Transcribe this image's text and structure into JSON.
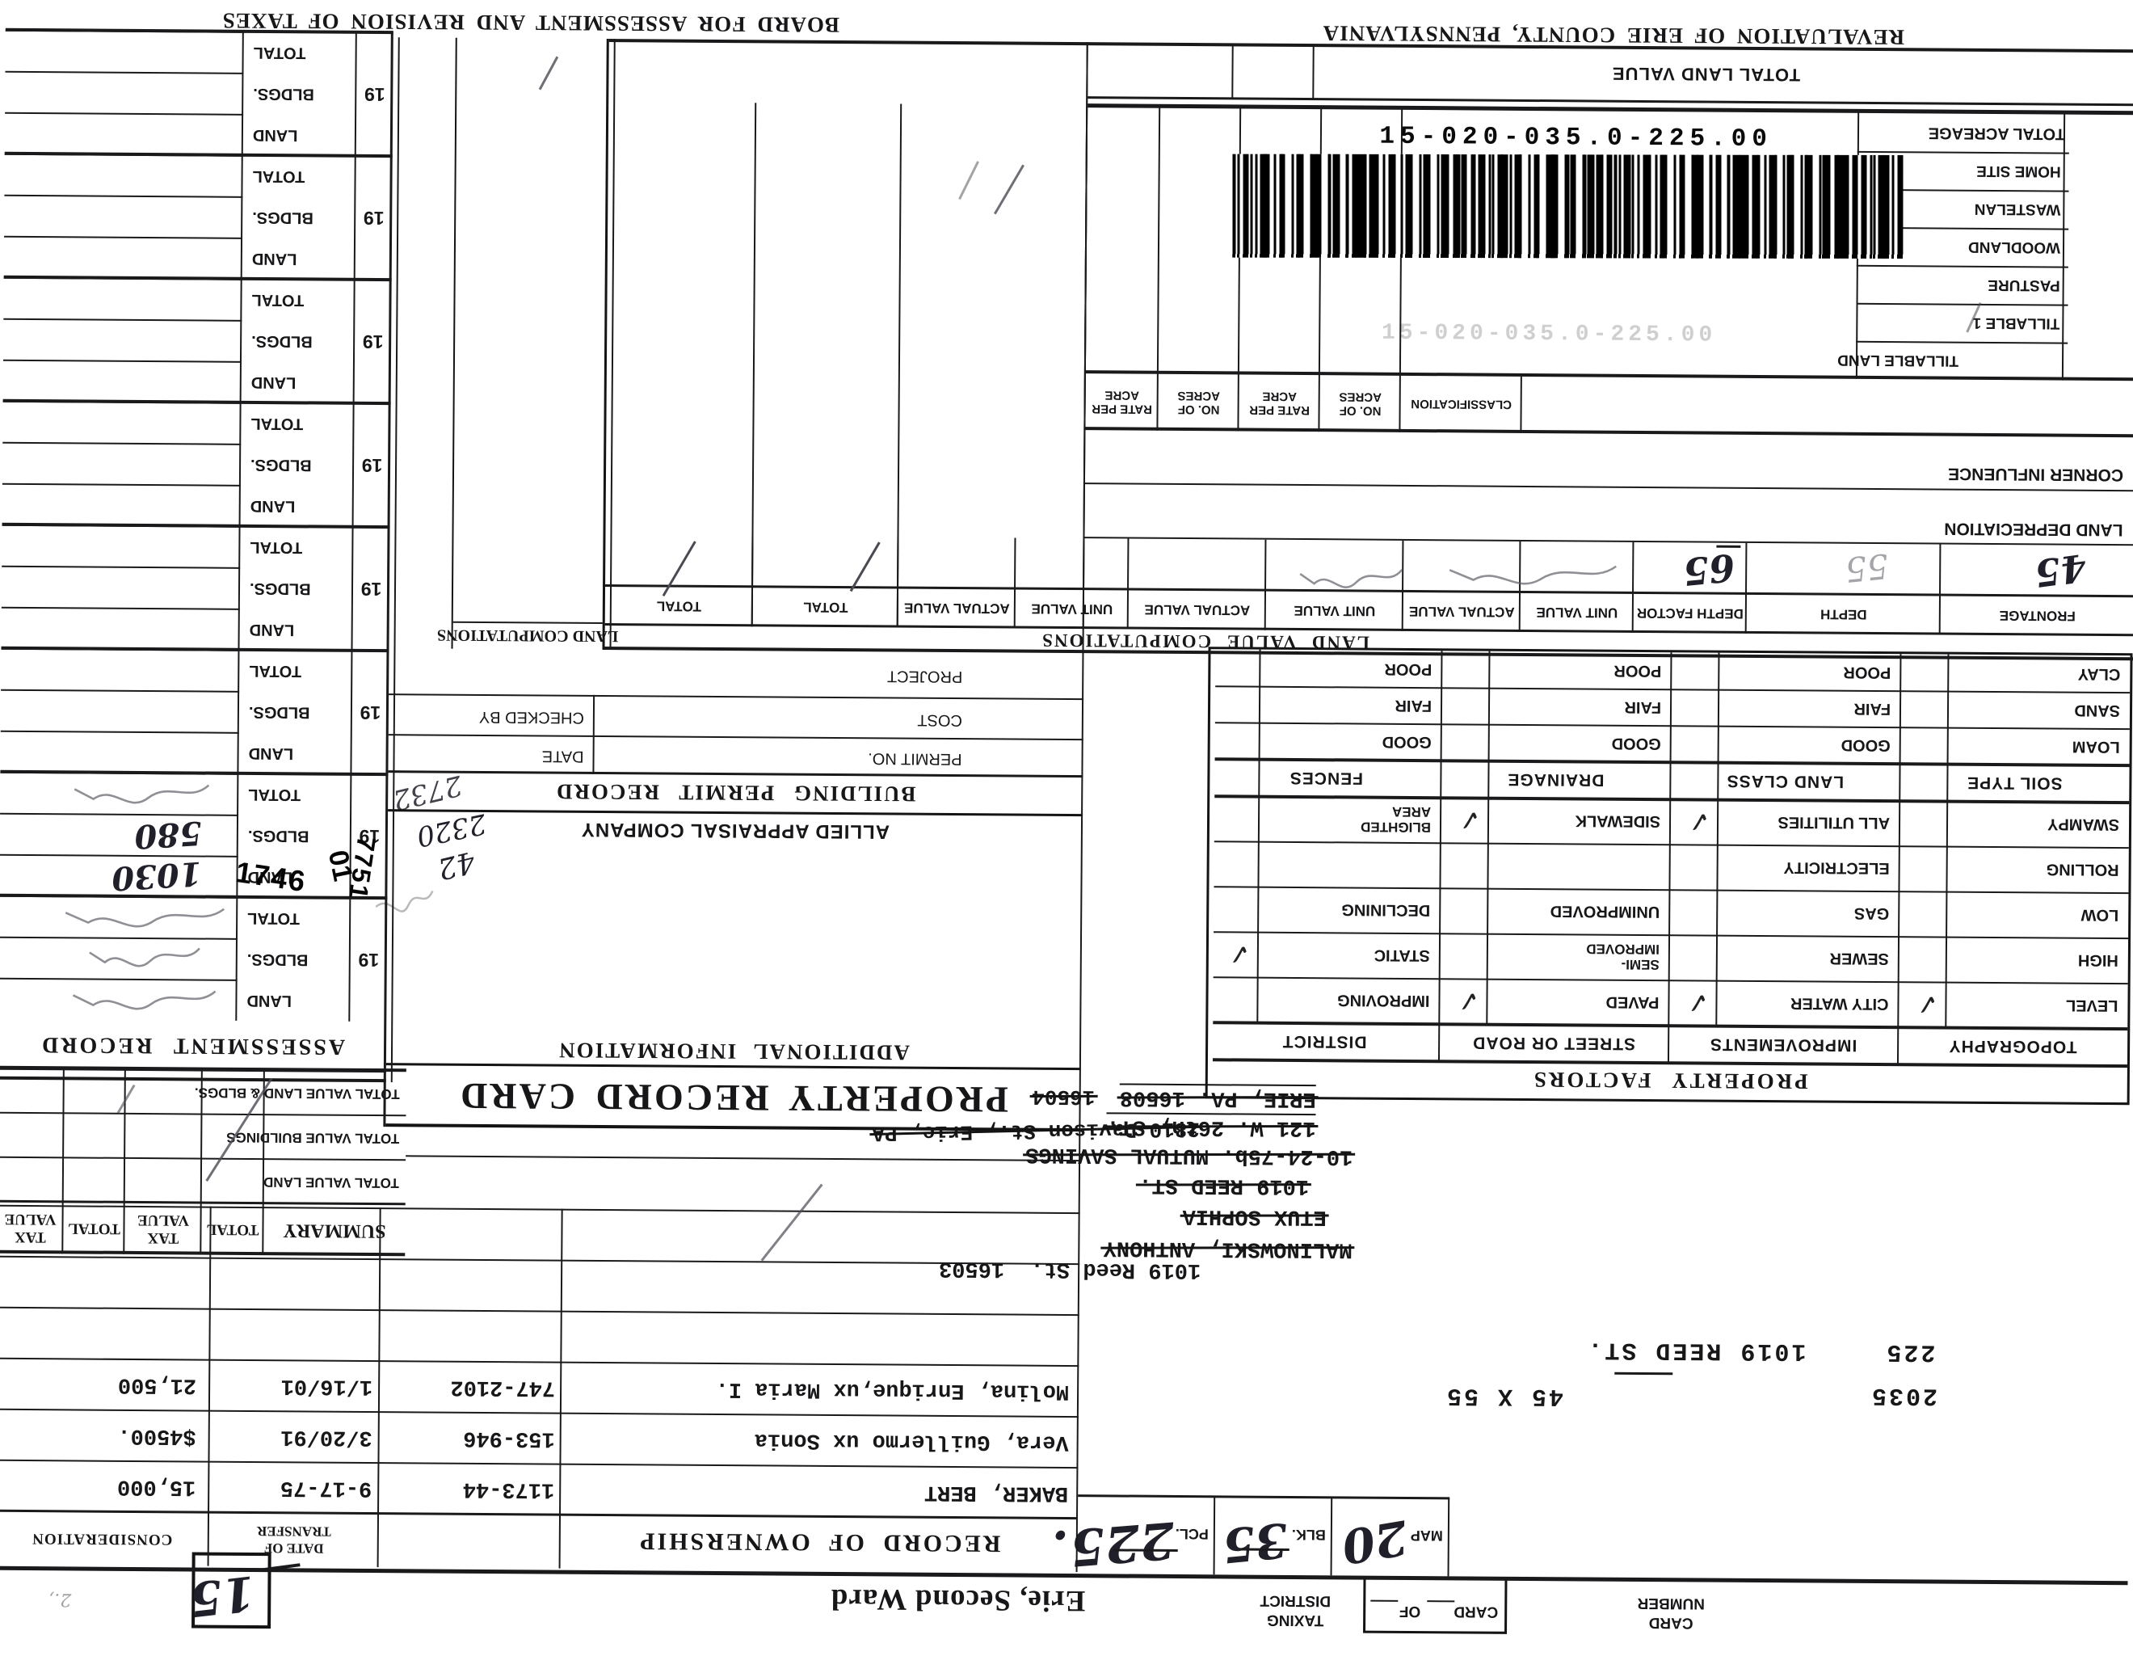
{
  "titles": {
    "board": "BOARD FOR ASSESSMENT AND REVISION OF TAXES",
    "revaluation": "REVALUATION OF ERIE COUNTY, PENNSYLVANIA",
    "property_record_card": "PROPERTY RECORD CARD",
    "assessment_record": "ASSESSMENT RECORD",
    "additional_information": "ADDITIONAL INFORMATION",
    "allied": "ALLIED APPRAISAL COMPANY",
    "building_permit_record": "BUILDING PERMIT RECORD",
    "land_computations": "LAND COMPUTATIONS",
    "land_value_computations": "LAND VALUE COMPUTATIONS",
    "property_factors": "PROPERTY FACTORS",
    "record_of_ownership": "RECORD OF OWNERSHIP",
    "summary": "SUMMARY"
  },
  "header": {
    "card_word": "CARD",
    "number_word": "NUMBER",
    "card_of_card": "CARD",
    "card_of_of": "OF",
    "taxing_word": "TAXING",
    "district_word": "DISTRICT",
    "district_value": "Erie, Second Ward",
    "district_number": "15"
  },
  "parcel": {
    "map_label": "MAP",
    "map_value": "20",
    "blk_label": "BLK.",
    "blk_value": "35",
    "pcl_label": "PCL.",
    "pcl_value": "225.",
    "typed_account": "2035",
    "typed_dims": "45 X 55",
    "typed_parcel": "225",
    "typed_address": "1019 REED ST.",
    "barcode_number": "15-020-035.0-225.00"
  },
  "owners": {
    "line1": "MALINOWSKI, ANTHONY",
    "line1_right": "1019 Reed St.  16503",
    "line2": "ETUX SOPHIA",
    "line3": "1019 REED ST.",
    "line4": "10-24-75b. MUTUAL SAVINGS",
    "line5": "121 W. 26th, ST.",
    "line6": "ERIE, PA. 16508",
    "line7": "2810 Davison St., Erie, PA",
    "line8": "16504"
  },
  "ownership": {
    "date_header_1": "DATE OF",
    "date_header_2": "TRANSFER",
    "consideration_header": "CONSIDERATION",
    "rows": [
      {
        "name": "BAKER, BERT",
        "book_page": "1173-44",
        "date": "9-17-75",
        "consideration": "15,000"
      },
      {
        "name": "Vera, Guillermo ux Sonia",
        "book_page": "153-946",
        "date": "3/20/91",
        "consideration": "$4500."
      },
      {
        "name": "Molina, Enrique,ux Maria I.",
        "book_page": "747-2102",
        "date": "1/16/01",
        "consideration": "21,500"
      }
    ]
  },
  "summary": {
    "headers": [
      "SUMMARY",
      "TOTAL",
      "TAX VALUE",
      "TOTAL",
      "TAX VALUE"
    ],
    "rows": [
      "TOTAL VALUE LAND",
      "TOTAL VALUE BUILDINGS",
      "TOTAL VALUE LAND & BLDGS."
    ]
  },
  "property_factors": {
    "groups": [
      "TOPOGRAPHY",
      "IMPROVEMENTS",
      "STREET OR ROAD",
      "DISTRICT"
    ],
    "rows": [
      [
        {
          "label": "LEVEL",
          "checked": true
        },
        {
          "label": "CITY WATER",
          "checked": true
        },
        {
          "label": "PAVED",
          "checked": true
        },
        {
          "label": "IMPROVING",
          "checked": false
        }
      ],
      [
        {
          "label": "HIGH",
          "checked": false
        },
        {
          "label": "SEWER",
          "checked": false
        },
        {
          "label": "SEMI-\nIMPROVED",
          "checked": false
        },
        {
          "label": "STATIC",
          "checked": true
        }
      ],
      [
        {
          "label": "LOW",
          "checked": false
        },
        {
          "label": "GAS",
          "checked": false
        },
        {
          "label": "UNIMPROVED",
          "checked": false
        },
        {
          "label": "DECLINING",
          "checked": false
        }
      ],
      [
        {
          "label": "ROLLING",
          "checked": false
        },
        {
          "label": "ELECTRICITY",
          "checked": false
        },
        {
          "label": "",
          "checked": false
        },
        {
          "label": "",
          "checked": false
        }
      ],
      [
        {
          "label": "SWAMPY",
          "checked": false
        },
        {
          "label": "ALL UTILITIES",
          "checked": true
        },
        {
          "label": "SIDEWALK",
          "checked": true
        },
        {
          "label": "BLIGHTED\nAREA",
          "checked": false
        }
      ]
    ],
    "groups2": [
      "SOIL TYPE",
      "LAND CLASS",
      "DRAINAGE",
      "FENCES"
    ],
    "rows2": [
      [
        "LOAM",
        "GOOD",
        "GOOD",
        "GOOD"
      ],
      [
        "SAND",
        "FAIR",
        "FAIR",
        "FAIR"
      ],
      [
        "CLAY",
        "POOR",
        "POOR",
        "POOR"
      ]
    ]
  },
  "land_value_computations": {
    "headers": [
      "FRONTAGE",
      "DEPTH",
      "DEPTH FACTOR",
      "UNIT VALUE",
      "ACTUAL VALUE",
      "UNIT VALUE",
      "ACTUAL VALUE",
      "UNIT VALUE",
      "ACTUAL VALUE",
      "TOTAL",
      "TOTAL"
    ],
    "frontage_value": "45",
    "depth_value": "55",
    "depth_factor_value": "65",
    "land_depreciation": "LAND DEPRECIATION",
    "corner_influence": "CORNER INFLUENCE",
    "classification_headers": [
      "CLASSIFICATION",
      "NO. OF ACRES",
      "RATE PER ACRE",
      "NO. OF ACRES",
      "RATE PER ACRE"
    ],
    "acreage_rows": [
      "TILLABLE LAND",
      "TILLABLE 1",
      "PASTURE",
      "WOODLAND",
      "WASTELAN",
      "HOME SITE"
    ],
    "total_acreage": "TOTAL ACREAGE",
    "total_land_value": "TOTAL LAND VALUE"
  },
  "building_permit": {
    "permit_no": "PERMIT NO.",
    "date": "DATE",
    "cost": "COST",
    "checked_by": "CHECKED BY",
    "project": "PROJECT"
  },
  "additional_notes": [
    "42",
    "2320",
    "2732"
  ],
  "assessment": {
    "year_prefix": "19",
    "row_labels": [
      "LAND",
      "BLDGS.",
      "TOTAL"
    ],
    "groups": [
      {
        "land": "",
        "bldgs": "",
        "total": "",
        "scribbles": true
      },
      {
        "land": "1030",
        "bldgs": "580",
        "total": "",
        "stamped": true
      },
      {
        "land": "",
        "bldgs": "",
        "total": ""
      },
      {
        "land": "",
        "bldgs": "",
        "total": ""
      },
      {
        "land": "",
        "bldgs": "",
        "total": ""
      },
      {
        "land": "",
        "bldgs": "",
        "total": ""
      },
      {
        "land": "",
        "bldgs": "",
        "total": ""
      },
      {
        "land": "",
        "bldgs": "",
        "total": ""
      }
    ],
    "stamps": {
      "s1": "1746",
      "s2": "01",
      "s3": "7751"
    }
  }
}
